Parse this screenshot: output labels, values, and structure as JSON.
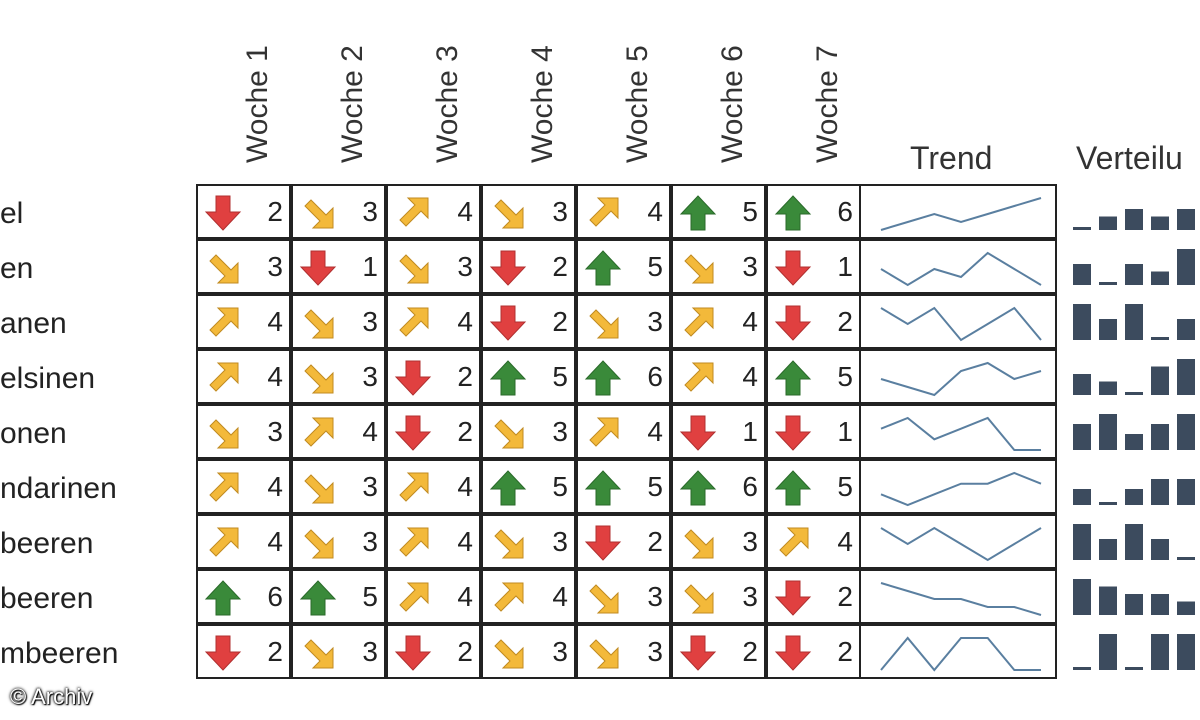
{
  "columns": [
    "Woche 1",
    "Woche 2",
    "Woche 3",
    "Woche 4",
    "Woche 5",
    "Woche 6",
    "Woche 7"
  ],
  "trend_header": "Trend",
  "distribution_header": "Verteilu",
  "copyright": "© Archiv",
  "colors": {
    "up": "#3a8a3a",
    "down": "#e04040",
    "diag": "#f3b93a",
    "line": "#5a7fa0",
    "bar": "#3c4b5e"
  },
  "rows": [
    {
      "label": "el",
      "values": [
        2,
        3,
        4,
        3,
        4,
        5,
        6
      ],
      "arrows": [
        "down",
        "down-right",
        "up-right",
        "down-right",
        "up-right",
        "up",
        "up"
      ]
    },
    {
      "label": "en",
      "values": [
        3,
        1,
        3,
        2,
        5,
        3,
        1
      ],
      "arrows": [
        "down-right",
        "down",
        "down-right",
        "down",
        "up",
        "down-right",
        "down"
      ]
    },
    {
      "label": "anen",
      "values": [
        4,
        3,
        4,
        2,
        3,
        4,
        2
      ],
      "arrows": [
        "up-right",
        "down-right",
        "up-right",
        "down",
        "down-right",
        "up-right",
        "down"
      ]
    },
    {
      "label": "elsinen",
      "values": [
        4,
        3,
        2,
        5,
        6,
        4,
        5
      ],
      "arrows": [
        "up-right",
        "down-right",
        "down",
        "up",
        "up",
        "up-right",
        "up"
      ]
    },
    {
      "label": "onen",
      "values": [
        3,
        4,
        2,
        3,
        4,
        1,
        1
      ],
      "arrows": [
        "down-right",
        "up-right",
        "down",
        "down-right",
        "up-right",
        "down",
        "down"
      ]
    },
    {
      "label": "ndarinen",
      "values": [
        4,
        3,
        4,
        5,
        5,
        6,
        5
      ],
      "arrows": [
        "up-right",
        "down-right",
        "up-right",
        "up",
        "up",
        "up",
        "up"
      ]
    },
    {
      "label": "beeren",
      "values": [
        4,
        3,
        4,
        3,
        2,
        3,
        4
      ],
      "arrows": [
        "up-right",
        "down-right",
        "up-right",
        "down-right",
        "down",
        "down-right",
        "up-right"
      ]
    },
    {
      "label": "beeren",
      "values": [
        6,
        5,
        4,
        4,
        3,
        3,
        2
      ],
      "arrows": [
        "up",
        "up",
        "up-right",
        "up-right",
        "down-right",
        "down-right",
        "down"
      ]
    },
    {
      "label": "mbeeren",
      "values": [
        2,
        3,
        2,
        3,
        3,
        2,
        2
      ],
      "arrows": [
        "down",
        "down-right",
        "down",
        "down-right",
        "down-right",
        "down",
        "down"
      ]
    }
  ]
}
